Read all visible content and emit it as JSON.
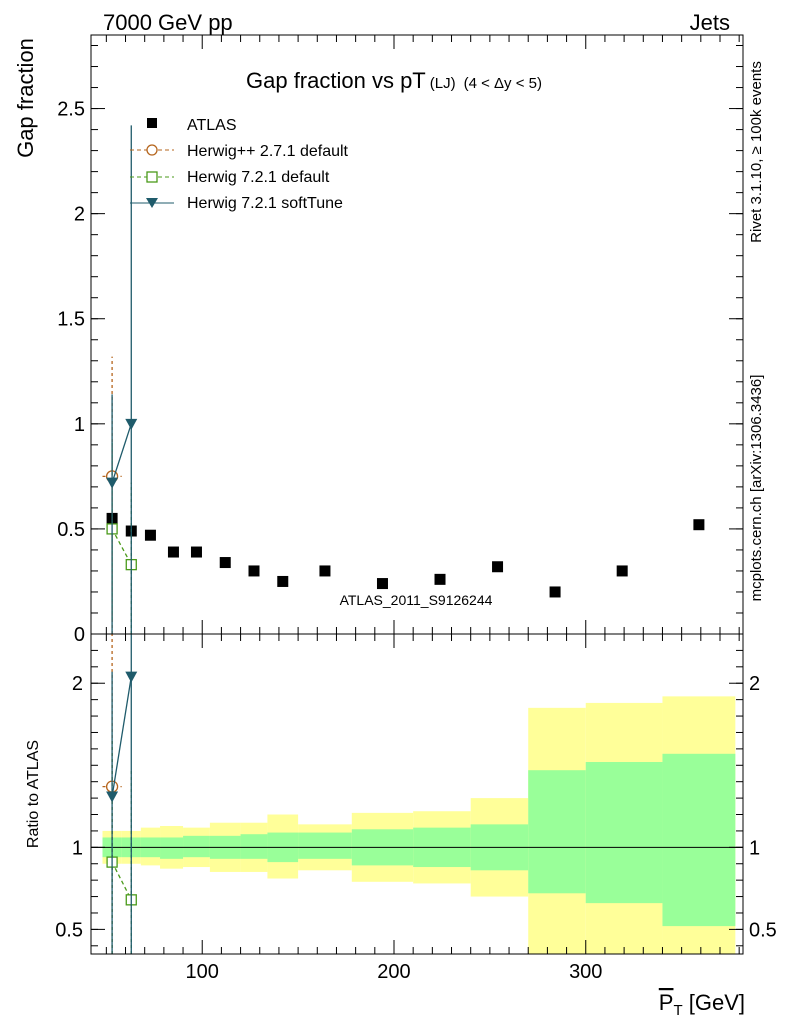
{
  "header": {
    "left_label": "7000 GeV pp",
    "right_label": "Jets"
  },
  "side_labels": {
    "rivet": "Rivet 3.1.10, ≥ 100k events",
    "mcplots": "mcplots.cern.ch [arXiv:1306.3436]"
  },
  "watermark": "ATLAS_2011_S9126244",
  "colors": {
    "atlas": "#000000",
    "herwigpp": "#b5651d",
    "herwig721": "#4a9a1a",
    "softtune": "#1f5b6b",
    "band_inner": "#99ff99",
    "band_outer": "#ffff99"
  },
  "chart_data": [
    {
      "type": "scatter",
      "title": "Gap fraction vs pT",
      "title_sub": "(LJ)",
      "title_range": "(4 < Δy < 5)",
      "xlabel": "P_T [GeV]",
      "ylabel": "Gap fraction",
      "xlim": [
        42,
        382
      ],
      "ylim": [
        0,
        2.85
      ],
      "y_ticks": [
        0,
        0.5,
        1,
        1.5,
        2,
        2.5
      ],
      "y_tick_labels": [
        "0",
        "0.5",
        "1",
        "1.5",
        "2",
        "2.5"
      ],
      "legend_position": "top-left",
      "legend": [
        "ATLAS",
        "Herwig++ 2.7.1 default",
        "Herwig 7.2.1 default",
        "Herwig 7.2.1 softTune"
      ],
      "series": [
        {
          "name": "ATLAS",
          "marker": "filled-square",
          "x": [
            53,
            63,
            73,
            85,
            97,
            112,
            127,
            142,
            164,
            194,
            224,
            254,
            284,
            319,
            359
          ],
          "y": [
            0.55,
            0.49,
            0.47,
            0.39,
            0.39,
            0.34,
            0.3,
            0.25,
            0.3,
            0.24,
            0.26,
            0.32,
            0.2,
            0.3,
            0.52
          ]
        },
        {
          "name": "Herwig++ 2.7.1 default",
          "marker": "open-circle",
          "line": "dashed",
          "x": [
            53
          ],
          "y": [
            0.75
          ],
          "y_err_low": [
            0.75
          ],
          "y_err_high": [
            0.57
          ],
          "x_err": [
            5
          ]
        },
        {
          "name": "Herwig 7.2.1 default",
          "marker": "open-square",
          "line": "dashed",
          "x": [
            53,
            63
          ],
          "y": [
            0.5,
            0.33
          ],
          "y_err_low": [
            0.43,
            0.33
          ],
          "y_err_high": [
            0.41,
            0.39
          ]
        },
        {
          "name": "Herwig 7.2.1 softTune",
          "marker": "filled-triangle-down",
          "line": "solid",
          "x": [
            53,
            63
          ],
          "y": [
            0.72,
            1.0
          ],
          "y_err_low": [
            0.72,
            1.0
          ],
          "y_err_high": [
            0.42,
            1.42
          ]
        }
      ]
    },
    {
      "type": "area",
      "ylabel": "Ratio to ATLAS",
      "xlabel": "P_T [GeV]",
      "xlim": [
        42,
        382
      ],
      "ylim": [
        0.35,
        2.3
      ],
      "y_ticks": [
        0.5,
        1,
        2
      ],
      "y_tick_labels": [
        "0.5",
        "1",
        "2"
      ],
      "x_ticks": [
        100,
        200,
        300
      ],
      "x_tick_labels": [
        "100",
        "200",
        "300"
      ],
      "reference_line": 1,
      "bands": {
        "edges": [
          48,
          58,
          68,
          78,
          90,
          104,
          120,
          134,
          150,
          178,
          210,
          240,
          270,
          300,
          340,
          378
        ],
        "inner_low": [
          0.94,
          0.94,
          0.94,
          0.93,
          0.94,
          0.93,
          0.93,
          0.91,
          0.93,
          0.89,
          0.88,
          0.86,
          0.72,
          0.66,
          0.52
        ],
        "inner_high": [
          1.06,
          1.06,
          1.06,
          1.06,
          1.07,
          1.07,
          1.08,
          1.09,
          1.09,
          1.11,
          1.12,
          1.14,
          1.47,
          1.52,
          1.57
        ],
        "outer_low": [
          0.9,
          0.9,
          0.89,
          0.87,
          0.88,
          0.85,
          0.85,
          0.81,
          0.86,
          0.79,
          0.78,
          0.7,
          0.33,
          0.33,
          0.33
        ],
        "outer_high": [
          1.1,
          1.1,
          1.12,
          1.13,
          1.12,
          1.15,
          1.15,
          1.2,
          1.14,
          1.21,
          1.22,
          1.3,
          1.85,
          1.88,
          1.92
        ]
      },
      "series": [
        {
          "name": "Herwig++ 2.7.1 default",
          "x": [
            53
          ],
          "y": [
            1.37
          ],
          "y_err_low": [
            1.37
          ],
          "y_err_high": [
            1.03
          ],
          "x_err": [
            5
          ]
        },
        {
          "name": "Herwig 7.2.1 default",
          "x": [
            53,
            63
          ],
          "y": [
            0.91,
            0.68
          ],
          "y_err_low": [
            0.78,
            0.68
          ],
          "y_err_high": [
            0.75,
            0.8
          ]
        },
        {
          "name": "Herwig 7.2.1 softTune",
          "x": [
            53,
            63
          ],
          "y": [
            1.31,
            2.04
          ],
          "y_err_low": [
            1.31,
            2.04
          ],
          "y_err_high": [
            0.76,
            2.9
          ]
        }
      ]
    }
  ]
}
